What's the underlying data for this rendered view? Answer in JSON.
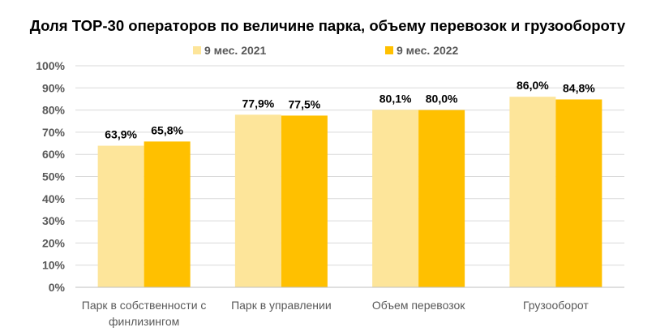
{
  "chart_data": {
    "type": "bar",
    "title": "Доля TOP-30 операторов по величине парка, объему перевозок и грузообороту",
    "categories": [
      [
        "Парк в собственности с",
        "финлизингом"
      ],
      [
        "Парк в управлении"
      ],
      [
        "Объем перевозок"
      ],
      [
        "Грузооборот"
      ]
    ],
    "series": [
      {
        "name": "9 мес. 2021",
        "color": "#fde59a",
        "values": [
          63.9,
          77.9,
          80.1,
          86.0
        ],
        "labels": [
          "63,9%",
          "77,9%",
          "80,1%",
          "86,0%"
        ]
      },
      {
        "name": "9 мес. 2022",
        "color": "#ffc000",
        "values": [
          65.8,
          77.5,
          80.0,
          84.8
        ],
        "labels": [
          "65,8%",
          "77,5%",
          "80,0%",
          "84,8%"
        ]
      }
    ],
    "ylim": [
      0,
      100
    ],
    "yticks": [
      "0%",
      "10%",
      "20%",
      "30%",
      "40%",
      "50%",
      "60%",
      "70%",
      "80%",
      "90%",
      "100%"
    ],
    "grid": true,
    "legend_position": "top"
  }
}
